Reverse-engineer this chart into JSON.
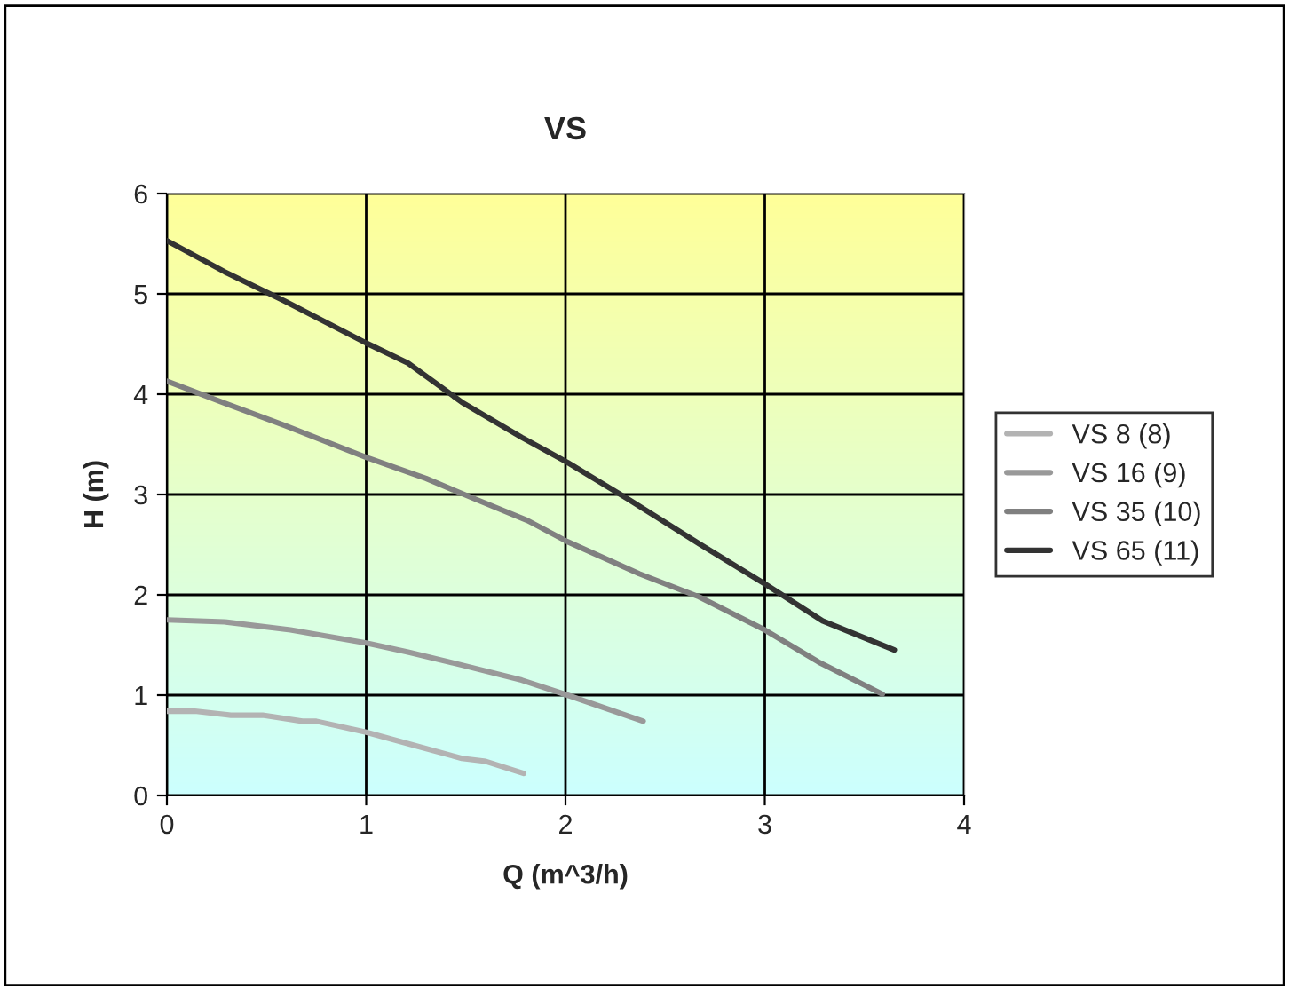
{
  "chart_data": {
    "type": "line",
    "title": "VS",
    "xlabel": "Q (m^3/h)",
    "ylabel": "H (m)",
    "xlim": [
      0,
      4
    ],
    "xticks": [
      0,
      1,
      2,
      3,
      4
    ],
    "ylim": [
      0,
      6
    ],
    "yticks": [
      0,
      1,
      2,
      3,
      4,
      5,
      6
    ],
    "grid": true,
    "legend": "right",
    "marker": "none",
    "line_style": "solid",
    "series": [
      {
        "name": "VS 8 (8)",
        "color": "#b3b3b3",
        "x": [
          0,
          0.14,
          0.32,
          0.48,
          0.68,
          0.75,
          1.0,
          1.24,
          1.48,
          1.6,
          1.79
        ],
        "values": [
          0.84,
          0.84,
          0.8,
          0.8,
          0.74,
          0.74,
          0.63,
          0.5,
          0.37,
          0.34,
          0.22
        ]
      },
      {
        "name": "VS 16 (9)",
        "color": "#999999",
        "x": [
          0,
          0.29,
          0.62,
          1.0,
          1.21,
          1.48,
          1.78,
          2.01,
          2.39
        ],
        "values": [
          1.75,
          1.73,
          1.65,
          1.52,
          1.43,
          1.3,
          1.15,
          1.0,
          0.74
        ]
      },
      {
        "name": "VS 35 (10)",
        "color": "#808080",
        "x": [
          0,
          0.29,
          0.59,
          1.0,
          1.3,
          1.54,
          1.81,
          2.01,
          2.37,
          2.67,
          3.0,
          3.27,
          3.59
        ],
        "values": [
          4.13,
          3.91,
          3.69,
          3.37,
          3.16,
          2.96,
          2.74,
          2.53,
          2.21,
          1.98,
          1.65,
          1.33,
          1.01
        ]
      },
      {
        "name": "VS 65 (11)",
        "color": "#333333",
        "x": [
          0,
          0.29,
          0.59,
          1.0,
          1.21,
          1.48,
          1.78,
          2.01,
          2.31,
          2.67,
          3.0,
          3.29,
          3.65
        ],
        "values": [
          5.53,
          5.22,
          4.93,
          4.51,
          4.31,
          3.92,
          3.57,
          3.32,
          2.96,
          2.51,
          2.11,
          1.74,
          1.45
        ]
      }
    ]
  }
}
